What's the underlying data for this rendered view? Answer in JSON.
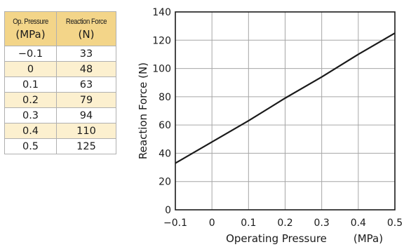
{
  "table": {
    "columns": [
      {
        "name": "Op. Pressure",
        "unit": "(MPa)"
      },
      {
        "name": "Reaction Force",
        "unit": "(N)"
      }
    ],
    "rows": [
      [
        "−0.1",
        "33"
      ],
      [
        "0",
        "48"
      ],
      [
        "0.1",
        "63"
      ],
      [
        "0.2",
        "79"
      ],
      [
        "0.3",
        "94"
      ],
      [
        "0.4",
        "110"
      ],
      [
        "0.5",
        "125"
      ]
    ]
  },
  "chart_data": {
    "type": "line",
    "title": "",
    "xlabel": "Operating Pressure",
    "xunit": "(MPa)",
    "ylabel": "Reaction Force (N)",
    "xlim": [
      -0.1,
      0.5
    ],
    "ylim": [
      0,
      140
    ],
    "xticks": [
      -0.1,
      0,
      0.1,
      0.2,
      0.3,
      0.4,
      0.5
    ],
    "xtick_labels": [
      "−0.1",
      "0",
      "0.1",
      "0.2",
      "0.3",
      "0.4",
      "0.5"
    ],
    "yticks": [
      0,
      20,
      40,
      60,
      80,
      100,
      120,
      140
    ],
    "ytick_labels": [
      "0",
      "20",
      "40",
      "60",
      "80",
      "100",
      "120",
      "140"
    ],
    "grid": true,
    "series": [
      {
        "x": [
          -0.1,
          0,
          0.1,
          0.2,
          0.3,
          0.4,
          0.5
        ],
        "y": [
          33,
          48,
          63,
          79,
          94,
          110,
          125
        ],
        "color": "#1a1a1a"
      }
    ]
  }
}
